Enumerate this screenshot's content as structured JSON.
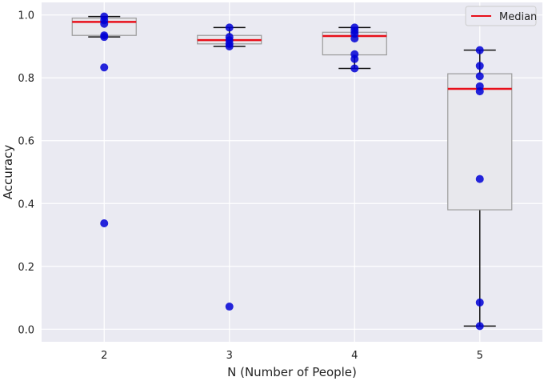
{
  "chart_data": {
    "type": "box",
    "title": "",
    "xlabel": "N (Number of People)",
    "ylabel": "Accuracy",
    "ylim": [
      -0.04,
      1.04
    ],
    "yticks": [
      "0.0",
      "0.2",
      "0.4",
      "0.6",
      "0.8",
      "1.0"
    ],
    "grid": true,
    "legend": {
      "position": "top-right",
      "entries": [
        "Median"
      ]
    },
    "colors": {
      "background": "#eaeaf2",
      "grid": "#ffffff",
      "box_fill": "#e8e8ed",
      "box_edge": "#9a9a9a",
      "median": "#e8101a",
      "whisker": "#111111",
      "point": "#0000d6"
    },
    "categories": [
      "2",
      "3",
      "4",
      "5"
    ],
    "boxes": [
      {
        "category": "2",
        "whisker_low": 0.93,
        "q1": 0.935,
        "median": 0.978,
        "q3": 0.99,
        "whisker_high": 0.995
      },
      {
        "category": "3",
        "whisker_low": 0.9,
        "q1": 0.908,
        "median": 0.92,
        "q3": 0.935,
        "whisker_high": 0.96
      },
      {
        "category": "4",
        "whisker_low": 0.83,
        "q1": 0.873,
        "median": 0.933,
        "q3": 0.945,
        "whisker_high": 0.96
      },
      {
        "category": "5",
        "whisker_low": 0.01,
        "q1": 0.38,
        "median": 0.765,
        "q3": 0.813,
        "whisker_high": 0.888
      }
    ],
    "points": [
      {
        "category": "2",
        "values": [
          0.995,
          0.983,
          0.972,
          0.935,
          0.93,
          0.833,
          0.337
        ]
      },
      {
        "category": "3",
        "values": [
          0.96,
          0.93,
          0.92,
          0.908,
          0.9,
          0.072
        ]
      },
      {
        "category": "4",
        "values": [
          0.96,
          0.95,
          0.94,
          0.925,
          0.875,
          0.86,
          0.83
        ]
      },
      {
        "category": "5",
        "values": [
          0.888,
          0.838,
          0.805,
          0.773,
          0.757,
          0.478,
          0.085,
          0.01
        ]
      }
    ]
  }
}
